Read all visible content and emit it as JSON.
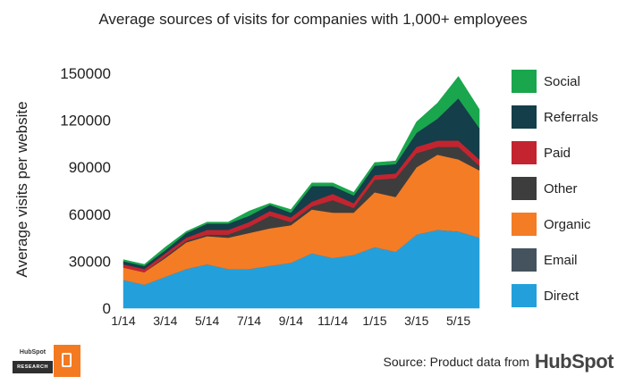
{
  "chart_data": {
    "type": "area",
    "stacked": true,
    "title": "Average sources of visits for companies with 1,000+ employees",
    "ylabel": "Average visits per website",
    "xlabel": "",
    "ylim": [
      0,
      150000
    ],
    "yticks": [
      "0",
      "30000",
      "60000",
      "90000",
      "120000",
      "150000"
    ],
    "ytick_values": [
      0,
      30000,
      60000,
      90000,
      120000,
      150000
    ],
    "x_tick_labels": [
      "1/14",
      "3/14",
      "5/14",
      "7/14",
      "9/14",
      "11/14",
      "1/15",
      "3/15",
      "5/15"
    ],
    "x_tick_positions": [
      0,
      2,
      4,
      6,
      8,
      10,
      12,
      14,
      16
    ],
    "grid": true,
    "series": [
      {
        "name": "Direct",
        "color": "#23a0dc",
        "values": [
          18000,
          15000,
          20000,
          25000,
          28000,
          25000,
          25000,
          27000,
          29000,
          35000,
          32000,
          34000,
          39000,
          36000,
          47000,
          50000,
          49000,
          45000
        ]
      },
      {
        "name": "Email",
        "color": "#45535e",
        "values": [
          0,
          0,
          0,
          0,
          0,
          0,
          0,
          0,
          0,
          0,
          0,
          0,
          0,
          0,
          0,
          0,
          0,
          0
        ]
      },
      {
        "name": "Organic",
        "color": "#f47c25",
        "values": [
          8000,
          8000,
          12000,
          17000,
          18000,
          20000,
          23000,
          24000,
          24000,
          28000,
          29000,
          27000,
          35000,
          35000,
          43000,
          48000,
          46000,
          43000
        ]
      },
      {
        "name": "Other",
        "color": "#3d3d3d",
        "values": [
          0,
          0,
          1000,
          1000,
          1000,
          2000,
          4000,
          8000,
          2000,
          2000,
          8000,
          3000,
          8000,
          12000,
          9000,
          5000,
          8000,
          3000
        ]
      },
      {
        "name": "Paid",
        "color": "#c4242f",
        "values": [
          2000,
          2000,
          2000,
          2000,
          3000,
          3000,
          3000,
          3000,
          3000,
          3000,
          4000,
          3000,
          3000,
          3000,
          4000,
          4000,
          4000,
          4000
        ]
      },
      {
        "name": "Referrals",
        "color": "#143e49",
        "values": [
          2000,
          2000,
          2000,
          3000,
          4000,
          4000,
          4000,
          4000,
          3000,
          10000,
          5000,
          5000,
          6000,
          6000,
          9000,
          14000,
          27000,
          20000
        ]
      },
      {
        "name": "Social",
        "color": "#1aa64d",
        "values": [
          1000,
          1000,
          2000,
          1000,
          1000,
          1000,
          3000,
          1000,
          2000,
          2000,
          2000,
          2000,
          2000,
          2000,
          7000,
          10000,
          14000,
          12000
        ]
      }
    ]
  },
  "legend": [
    {
      "label": "Social",
      "color": "#1aa64d"
    },
    {
      "label": "Referrals",
      "color": "#143e49"
    },
    {
      "label": "Paid",
      "color": "#c4242f"
    },
    {
      "label": "Other",
      "color": "#3d3d3d"
    },
    {
      "label": "Organic",
      "color": "#f47c25"
    },
    {
      "label": "Email",
      "color": "#45535e"
    },
    {
      "label": "Direct",
      "color": "#23a0dc"
    }
  ],
  "source_text": "Source: Product data from",
  "brand": "HubSpot",
  "logo": {
    "top": "HubSpot",
    "bottom": "RESEARCH"
  }
}
